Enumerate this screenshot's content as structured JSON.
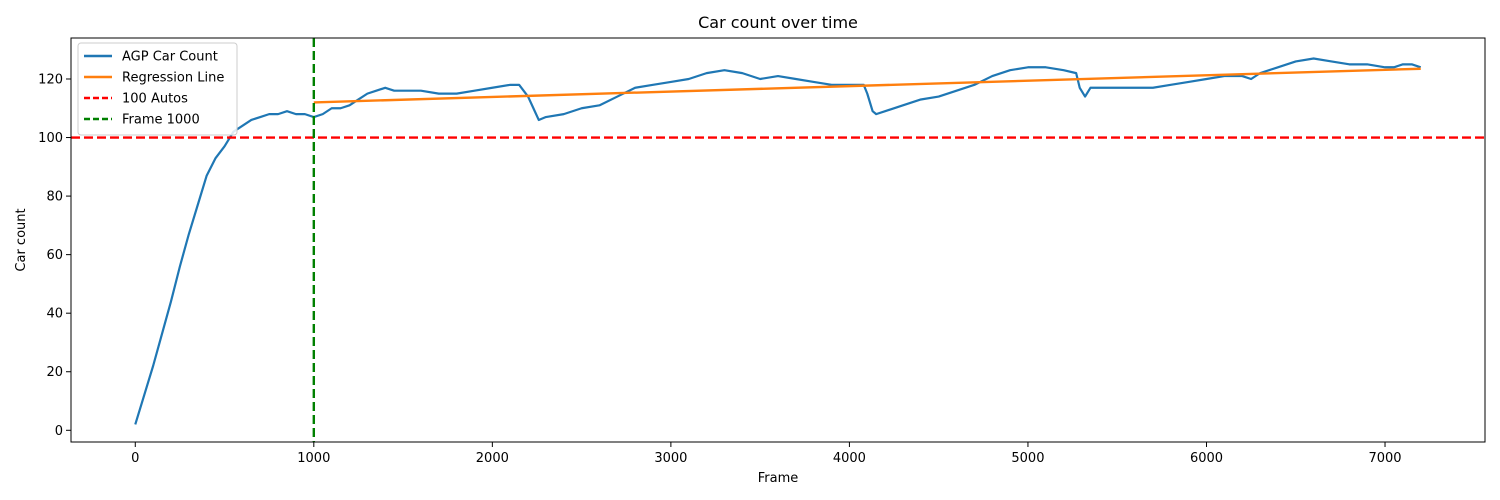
{
  "chart_data": {
    "type": "line",
    "title": "Car count over time",
    "xlabel": "Frame",
    "ylabel": "Car count",
    "xlim": [
      -360,
      7560
    ],
    "ylim": [
      -4,
      134
    ],
    "xticks": [
      0,
      1000,
      2000,
      3000,
      4000,
      5000,
      6000,
      7000
    ],
    "yticks": [
      0,
      20,
      40,
      60,
      80,
      100,
      120
    ],
    "grid": false,
    "legend_position": "upper-left",
    "series": [
      {
        "name": "AGP Car Count",
        "color": "#1f77b4",
        "style": "solid",
        "x": [
          0,
          50,
          100,
          150,
          200,
          250,
          300,
          350,
          400,
          450,
          500,
          550,
          600,
          650,
          700,
          750,
          800,
          850,
          900,
          950,
          1000,
          1050,
          1100,
          1150,
          1200,
          1250,
          1300,
          1350,
          1400,
          1450,
          1500,
          1600,
          1700,
          1800,
          1900,
          2000,
          2100,
          2150,
          2200,
          2230,
          2260,
          2300,
          2400,
          2500,
          2600,
          2700,
          2800,
          2900,
          3000,
          3100,
          3200,
          3300,
          3400,
          3500,
          3600,
          3700,
          3800,
          3900,
          4000,
          4080,
          4100,
          4130,
          4150,
          4200,
          4300,
          4400,
          4500,
          4600,
          4700,
          4800,
          4900,
          5000,
          5100,
          5200,
          5270,
          5290,
          5320,
          5350,
          5400,
          5500,
          5600,
          5700,
          5800,
          5900,
          6000,
          6100,
          6200,
          6250,
          6300,
          6400,
          6500,
          6600,
          6700,
          6800,
          6900,
          7000,
          7050,
          7100,
          7150,
          7200
        ],
        "y": [
          2,
          12,
          22,
          33,
          44,
          56,
          67,
          77,
          87,
          93,
          97,
          102,
          104,
          106,
          107,
          108,
          108,
          109,
          108,
          108,
          107,
          108,
          110,
          110,
          111,
          113,
          115,
          116,
          117,
          116,
          116,
          116,
          115,
          115,
          116,
          117,
          118,
          118,
          114,
          110,
          106,
          107,
          108,
          110,
          111,
          114,
          117,
          118,
          119,
          120,
          122,
          123,
          122,
          120,
          121,
          120,
          119,
          118,
          118,
          118,
          115,
          109,
          108,
          109,
          111,
          113,
          114,
          116,
          118,
          121,
          123,
          124,
          124,
          123,
          122,
          117,
          114,
          117,
          117,
          117,
          117,
          117,
          118,
          119,
          120,
          121,
          121,
          120,
          122,
          124,
          126,
          127,
          126,
          125,
          125,
          124,
          124,
          125,
          125,
          124
        ]
      },
      {
        "name": "Regression Line",
        "color": "#ff7f0e",
        "style": "solid",
        "x": [
          1000,
          7200
        ],
        "y": [
          112,
          123.5
        ]
      }
    ],
    "reference_lines": [
      {
        "name": "100 Autos",
        "orientation": "horizontal",
        "value": 100,
        "color": "#ff0000",
        "style": "dashed"
      },
      {
        "name": "Frame 1000",
        "orientation": "vertical",
        "value": 1000,
        "color": "#008000",
        "style": "dashed"
      }
    ]
  }
}
